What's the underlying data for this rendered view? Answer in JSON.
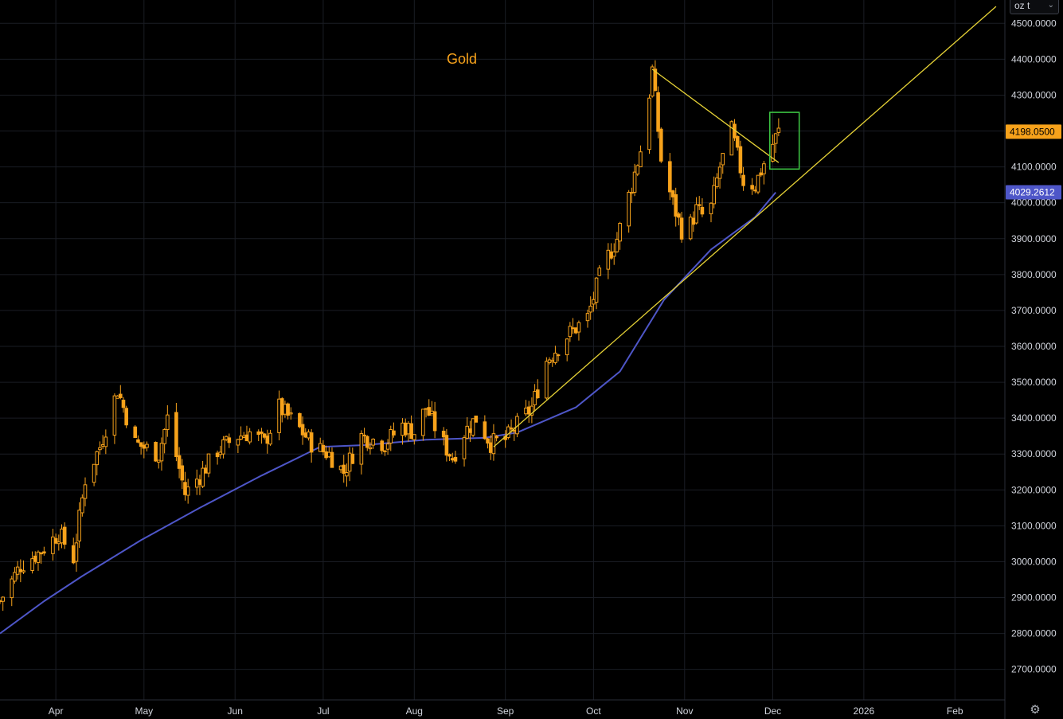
{
  "unit_selector": {
    "value": "oz t",
    "icon": "chevron-down-icon"
  },
  "settings": {
    "icon": "gear-icon"
  },
  "colors": {
    "background": "#000000",
    "grid": "#1a1d24",
    "candle": "#f7a21b",
    "moving_average": "#4e56c8",
    "trendline": "#e6d236",
    "highlight_box": "#3ec944",
    "title": "#f7a21b",
    "last_price_tag": "#f7a21b",
    "ma_price_tag": "#4e56c8",
    "axis_text": "#d1d4dc"
  },
  "chart_data": {
    "type": "candlestick",
    "title": "Gold",
    "x_axis": {
      "tick_labels": [
        "Apr",
        "May",
        "Jun",
        "Jul",
        "Aug",
        "Sep",
        "Oct",
        "Nov",
        "Dec",
        "2026",
        "Feb"
      ],
      "range": [
        "2025-03-13",
        "2026-02-18"
      ]
    },
    "y_axis": {
      "position": "right",
      "range": [
        2615,
        4565
      ],
      "tick_values": [
        2700,
        2800,
        2900,
        3000,
        3100,
        3200,
        3300,
        3400,
        3500,
        3600,
        3700,
        3800,
        3900,
        4000,
        4100,
        4200,
        4300,
        4400,
        4500
      ],
      "tick_labels": [
        "2700.0000",
        "2800.0000",
        "2900.0000",
        "3000.0000",
        "3100.0000",
        "3200.0000",
        "3300.0000",
        "3400.0000",
        "3500.0000",
        "3600.0000",
        "3700.0000",
        "3800.0000",
        "3900.0000",
        "4000.0000",
        "4100.0000",
        "4200.0000",
        "4300.0000",
        "4400.0000",
        "4500.0000"
      ]
    },
    "grid": true,
    "last_price": {
      "value": 4198.05,
      "label": "4198.0500"
    },
    "moving_average_last": {
      "value": 4029.2612,
      "label": "4029.2612"
    },
    "price_path": [
      [
        "2025-03-13",
        2890
      ],
      [
        "2025-03-20",
        2990
      ],
      [
        "2025-03-27",
        3030
      ],
      [
        "2025-04-02",
        3080
      ],
      [
        "2025-04-07",
        3010
      ],
      [
        "2025-04-11",
        3230
      ],
      [
        "2025-04-16",
        3320
      ],
      [
        "2025-04-22",
        3480
      ],
      [
        "2025-04-28",
        3330
      ],
      [
        "2025-05-06",
        3300
      ],
      [
        "2025-05-09",
        3400
      ],
      [
        "2025-05-15",
        3190
      ],
      [
        "2025-05-20",
        3240
      ],
      [
        "2025-05-26",
        3310
      ],
      [
        "2025-06-02",
        3350
      ],
      [
        "2025-06-06",
        3360
      ],
      [
        "2025-06-11",
        3330
      ],
      [
        "2025-06-16",
        3430
      ],
      [
        "2025-06-22",
        3380
      ],
      [
        "2025-06-28",
        3320
      ],
      [
        "2025-07-03",
        3300
      ],
      [
        "2025-07-08",
        3250
      ],
      [
        "2025-07-14",
        3350
      ],
      [
        "2025-07-22",
        3330
      ],
      [
        "2025-07-28",
        3380
      ],
      [
        "2025-08-01",
        3360
      ],
      [
        "2025-08-05",
        3430
      ],
      [
        "2025-08-10",
        3340
      ],
      [
        "2025-08-14",
        3290
      ],
      [
        "2025-08-18",
        3360
      ],
      [
        "2025-08-22",
        3400
      ],
      [
        "2025-08-27",
        3330
      ],
      [
        "2025-09-01",
        3340
      ],
      [
        "2025-09-05",
        3380
      ],
      [
        "2025-09-10",
        3430
      ],
      [
        "2025-09-15",
        3560
      ],
      [
        "2025-09-22",
        3630
      ],
      [
        "2025-09-29",
        3680
      ],
      [
        "2025-10-04",
        3820
      ],
      [
        "2025-10-09",
        3900
      ],
      [
        "2025-10-14",
        4050
      ],
      [
        "2025-10-18",
        4180
      ],
      [
        "2025-10-21",
        4370
      ],
      [
        "2025-10-24",
        4120
      ],
      [
        "2025-10-28",
        4000
      ],
      [
        "2025-11-01",
        3900
      ],
      [
        "2025-11-05",
        3980
      ],
      [
        "2025-11-09",
        3950
      ],
      [
        "2025-11-13",
        4100
      ],
      [
        "2025-11-17",
        4200
      ],
      [
        "2025-11-21",
        4060
      ],
      [
        "2025-11-25",
        4050
      ],
      [
        "2025-11-29",
        4130
      ],
      [
        "2025-12-03",
        4198
      ]
    ],
    "moving_average": [
      [
        "2025-03-13",
        2800
      ],
      [
        "2025-03-28",
        2890
      ],
      [
        "2025-04-10",
        2960
      ],
      [
        "2025-04-30",
        3060
      ],
      [
        "2025-05-20",
        3150
      ],
      [
        "2025-06-10",
        3240
      ],
      [
        "2025-06-30",
        3320
      ],
      [
        "2025-07-15",
        3325
      ],
      [
        "2025-08-05",
        3340
      ],
      [
        "2025-08-25",
        3345
      ],
      [
        "2025-09-05",
        3360
      ],
      [
        "2025-09-25",
        3430
      ],
      [
        "2025-10-10",
        3530
      ],
      [
        "2025-10-25",
        3730
      ],
      [
        "2025-11-10",
        3870
      ],
      [
        "2025-11-25",
        3960
      ],
      [
        "2025-12-02",
        4029
      ]
    ],
    "annotations": [
      {
        "type": "ascending-trendline",
        "from": [
          "2025-08-28",
          3320
        ],
        "to": [
          "2026-02-15",
          4547
        ]
      },
      {
        "type": "descending-trendline",
        "from": [
          "2025-10-21",
          4372
        ],
        "to": [
          "2025-12-03",
          4112
        ]
      },
      {
        "type": "highlight-box",
        "x0": "2025-11-30",
        "x1": "2025-12-10",
        "y0": 4094,
        "y1": 4252
      }
    ]
  }
}
